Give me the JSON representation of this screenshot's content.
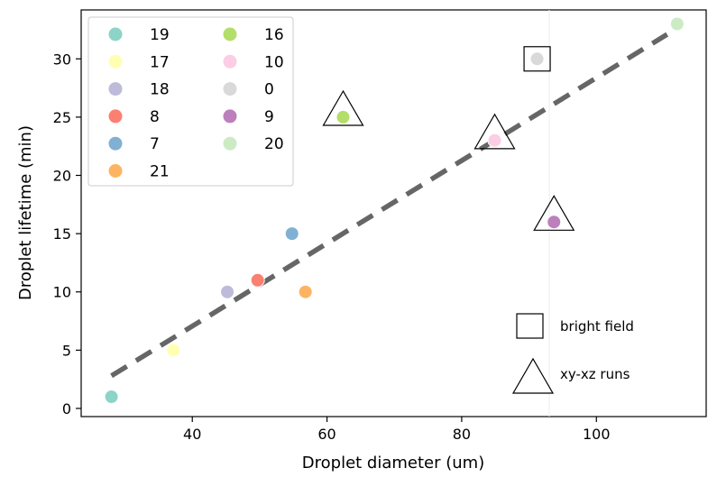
{
  "chart_data": {
    "type": "scatter",
    "xlabel": "Droplet diameter (um)",
    "ylabel": "Droplet lifetime (min)",
    "xlim": [
      23.5,
      116.3
    ],
    "ylim": [
      -0.7,
      34.2
    ],
    "xticks": [
      40,
      60,
      80,
      100
    ],
    "yticks": [
      0,
      5,
      10,
      15,
      20,
      25,
      30
    ],
    "grid": false,
    "legend_position": "top-left",
    "legend_columns": 2,
    "series": [
      {
        "name": "19",
        "color": "#8dd3c7",
        "x": 28.0,
        "y": 1.0
      },
      {
        "name": "17",
        "color": "#ffffb3",
        "x": 37.2,
        "y": 5.0
      },
      {
        "name": "18",
        "color": "#bebada",
        "x": 45.2,
        "y": 10.0
      },
      {
        "name": "8",
        "color": "#fb8072",
        "x": 49.7,
        "y": 11.0
      },
      {
        "name": "7",
        "color": "#80b1d3",
        "x": 54.8,
        "y": 15.0
      },
      {
        "name": "21",
        "color": "#fdb462",
        "x": 56.8,
        "y": 10.0
      },
      {
        "name": "16",
        "color": "#b3de69",
        "x": 62.4,
        "y": 25.0
      },
      {
        "name": "10",
        "color": "#fccde5",
        "x": 84.9,
        "y": 23.0
      },
      {
        "name": "0",
        "color": "#d9d9d9",
        "x": 91.2,
        "y": 30.0
      },
      {
        "name": "9",
        "color": "#bc80bd",
        "x": 93.7,
        "y": 16.0
      },
      {
        "name": "20",
        "color": "#ccebc5",
        "x": 112.0,
        "y": 33.0
      }
    ],
    "fit_line": {
      "style": "dashed",
      "color": "#666666",
      "x": [
        28.0,
        110.5
      ],
      "y": [
        2.8,
        32.1
      ]
    },
    "vertical_line": {
      "x": 93.0,
      "color": "#eeeeee"
    },
    "marker_annotations": [
      {
        "shape": "square",
        "x": 91.2,
        "y": 30.0
      },
      {
        "shape": "triangle",
        "x": 62.4,
        "y": 25.3
      },
      {
        "shape": "triangle",
        "x": 84.9,
        "y": 23.3
      },
      {
        "shape": "triangle",
        "x": 93.7,
        "y": 16.3
      }
    ],
    "annotation_legend": [
      {
        "shape": "square",
        "label": "bright field"
      },
      {
        "shape": "triangle",
        "label": "xy-xz runs"
      }
    ]
  }
}
